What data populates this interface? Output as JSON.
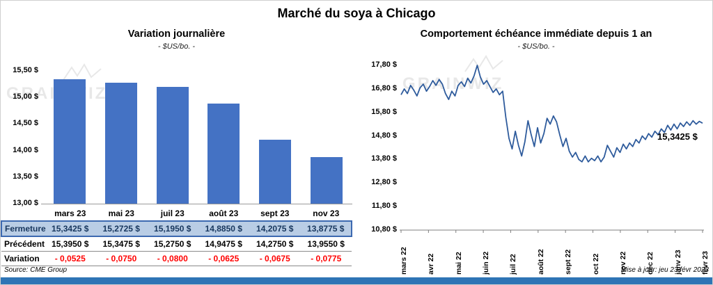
{
  "title": "Marché du soya à Chicago",
  "watermark": "GRAINWIZ",
  "colors": {
    "bar": "#4472C4",
    "line": "#2E5B9C",
    "close_row_bg": "#B9CDE5",
    "close_row_border": "#3C69B0",
    "variation_text": "#FF0000",
    "navy_text": "#17365D",
    "footer_bar": "#2E74B5"
  },
  "chart_data": [
    {
      "type": "bar",
      "title": "Variation  journalière",
      "subtitle": "- $US/bo. -",
      "categories": [
        "mars 23",
        "mai 23",
        "juil 23",
        "août 23",
        "sept 23",
        "nov 23"
      ],
      "values": [
        15.3425,
        15.2725,
        15.195,
        14.885,
        14.2075,
        13.8775
      ],
      "ylim": [
        13.0,
        15.5
      ],
      "yticks": [
        {
          "v": 15.5,
          "label": "15,50 $"
        },
        {
          "v": 15.0,
          "label": "15,00 $"
        },
        {
          "v": 14.5,
          "label": "14,50 $"
        },
        {
          "v": 14.0,
          "label": "14,00 $"
        },
        {
          "v": 13.5,
          "label": "13,50 $"
        },
        {
          "v": 13.0,
          "label": "13,00 $"
        }
      ],
      "grid": false,
      "legend": "none"
    },
    {
      "type": "line",
      "title": "Comportement  échéance  immédiate  depuis 1 an",
      "subtitle": "- $US/bo. -",
      "ylim": [
        10.8,
        17.8
      ],
      "yticks": [
        {
          "v": 17.8,
          "label": "17,80 $"
        },
        {
          "v": 16.8,
          "label": "16,80 $"
        },
        {
          "v": 15.8,
          "label": "15,80 $"
        },
        {
          "v": 14.8,
          "label": "14,80 $"
        },
        {
          "v": 13.8,
          "label": "13,80 $"
        },
        {
          "v": 12.8,
          "label": "12,80 $"
        },
        {
          "v": 11.8,
          "label": "11,80 $"
        },
        {
          "v": 10.8,
          "label": "10,80 $"
        }
      ],
      "x_labels": [
        "mars 22",
        "avr 22",
        "mai 22",
        "juin 22",
        "juil 22",
        "août 22",
        "sept 22",
        "oct 22",
        "nov 22",
        "déc 22",
        "janv 23",
        "févr 23"
      ],
      "values": [
        16.55,
        16.8,
        16.6,
        16.95,
        16.75,
        16.5,
        16.85,
        17.0,
        16.7,
        16.9,
        17.15,
        16.95,
        17.2,
        17.0,
        16.6,
        16.35,
        16.7,
        16.5,
        16.95,
        17.1,
        16.9,
        17.25,
        17.05,
        17.35,
        17.8,
        17.3,
        17.0,
        17.15,
        16.9,
        16.65,
        16.8,
        16.55,
        16.7,
        15.6,
        14.7,
        14.25,
        15.0,
        14.4,
        13.95,
        14.55,
        15.45,
        14.85,
        14.35,
        15.15,
        14.5,
        14.9,
        15.55,
        15.3,
        15.65,
        15.4,
        14.85,
        14.35,
        14.7,
        14.15,
        13.9,
        14.1,
        13.8,
        13.7,
        13.95,
        13.7,
        13.85,
        13.75,
        13.95,
        13.7,
        13.9,
        14.4,
        14.15,
        13.9,
        14.3,
        14.1,
        14.45,
        14.25,
        14.5,
        14.35,
        14.65,
        14.5,
        14.8,
        14.65,
        14.9,
        14.75,
        15.0,
        14.85,
        15.1,
        14.95,
        15.25,
        15.05,
        15.3,
        15.1,
        15.35,
        15.2,
        15.4,
        15.25,
        15.45,
        15.3,
        15.42,
        15.3425
      ],
      "annotation": "15,3425 $",
      "grid": false,
      "legend": "none"
    }
  ],
  "table": {
    "rows": [
      {
        "label": "Fermeture",
        "style": "close",
        "values": [
          "15,3425  $",
          "15,2725  $",
          "15,1950  $",
          "14,8850  $",
          "14,2075  $",
          "13,8775  $"
        ]
      },
      {
        "label": "Précédent",
        "style": "prev",
        "values": [
          "15,3950  $",
          "15,3475  $",
          "15,2750  $",
          "14,9475  $",
          "14,2750  $",
          "13,9550  $"
        ]
      },
      {
        "label": "Variation",
        "style": "var",
        "values": [
          "- 0,0525",
          "- 0,0750",
          "- 0,0800",
          "- 0,0625",
          "- 0,0675",
          "- 0,0775"
        ]
      }
    ]
  },
  "footer": {
    "source": "Source: CME Group",
    "updated": "Mise à jour: jeu 23 févr 2023"
  }
}
